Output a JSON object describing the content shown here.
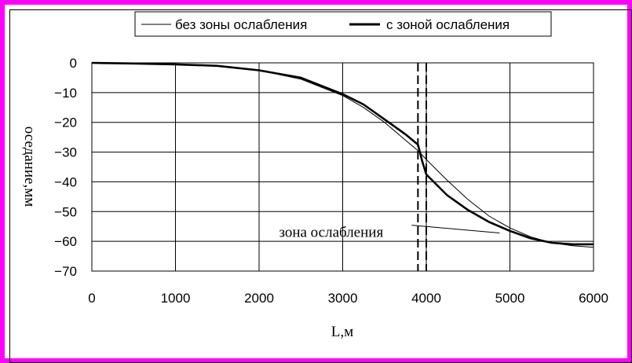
{
  "chart_data": {
    "type": "line",
    "xlabel": "L,м",
    "ylabel": "оседание,мм",
    "xlim": [
      0,
      6000
    ],
    "ylim": [
      -70,
      0
    ],
    "x_ticks": [
      0,
      1000,
      2000,
      3000,
      4000,
      5000,
      6000
    ],
    "y_ticks": [
      0,
      -10,
      -20,
      -30,
      -40,
      -50,
      -60,
      -70
    ],
    "x_tick_labels": [
      "0",
      "1000",
      "2000",
      "3000",
      "4000",
      "5000",
      "6000"
    ],
    "y_tick_labels": [
      "0",
      "−10",
      "−20",
      "−30",
      "−40",
      "−50",
      "−60",
      "−70"
    ],
    "grid": true,
    "legend_position": "top",
    "series": [
      {
        "name": "без зоны ослабления",
        "color": "#000000",
        "style": "thin",
        "x": [
          0,
          500,
          1000,
          1500,
          2000,
          2500,
          3000,
          3250,
          3500,
          3750,
          3900,
          4000,
          4250,
          4500,
          4750,
          5000,
          5250,
          5500,
          5750,
          6000
        ],
        "y": [
          0,
          -0.2,
          -0.5,
          -1,
          -2.5,
          -5.5,
          -11,
          -15,
          -20,
          -26,
          -29.5,
          -32.5,
          -39.5,
          -46,
          -51.5,
          -55.5,
          -58.5,
          -60.5,
          -61.5,
          -62
        ]
      },
      {
        "name": "с зоной ослабления",
        "color": "#000000",
        "style": "thick",
        "x": [
          0,
          500,
          1000,
          1500,
          2000,
          2500,
          3000,
          3250,
          3500,
          3750,
          3900,
          3950,
          4000,
          4250,
          4500,
          4750,
          5000,
          5250,
          5500,
          5750,
          6000
        ],
        "y": [
          0,
          -0.2,
          -0.5,
          -1,
          -2.5,
          -5,
          -10.5,
          -14,
          -19,
          -24,
          -27.5,
          -33,
          -37.5,
          -44.5,
          -49.5,
          -53.5,
          -56.5,
          -59,
          -60.5,
          -61,
          -61
        ]
      }
    ],
    "annotations": [
      {
        "text": "зона ослабления",
        "x_range": [
          3900,
          4000
        ],
        "label_x": 3300,
        "label_y": -58
      }
    ]
  }
}
